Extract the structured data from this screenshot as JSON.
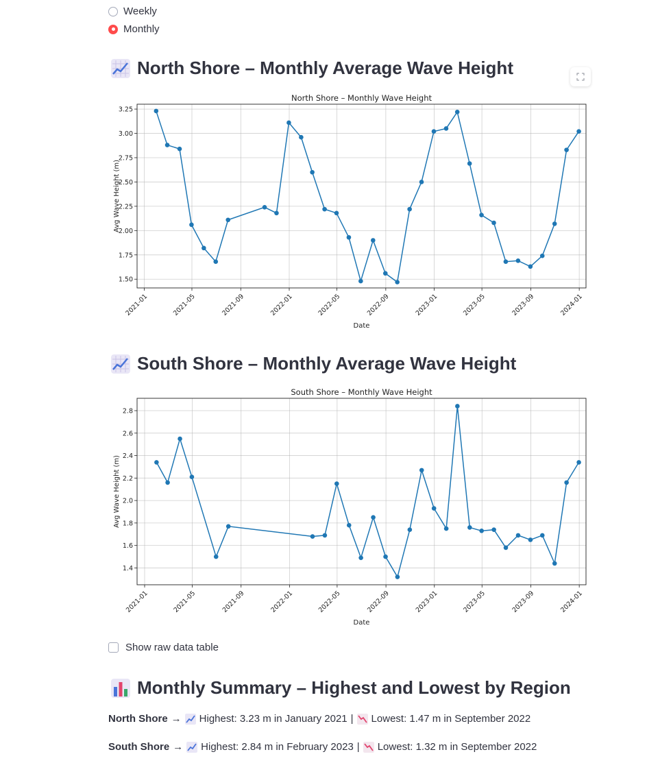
{
  "frequency": {
    "options": [
      {
        "label": "Weekly",
        "selected": false
      },
      {
        "label": "Monthly",
        "selected": true
      }
    ]
  },
  "north": {
    "heading": "North Shore – Monthly Average Wave Height",
    "heading_icon": "chart-increasing-icon"
  },
  "south": {
    "heading": "South Shore – Monthly Average Wave Height",
    "heading_icon": "chart-increasing-icon"
  },
  "show_raw": {
    "label": "Show raw data table",
    "checked": false
  },
  "summary": {
    "heading": "Monthly Summary – Highest and Lowest by Region",
    "heading_icon": "bar-chart-icon",
    "rows": [
      {
        "region": "North Shore",
        "arrow": "→",
        "highest": "Highest: 3.23 m in January 2021",
        "sep": "|",
        "lowest": "Lowest: 1.47 m in September 2022"
      },
      {
        "region": "South Shore",
        "arrow": "→",
        "highest": "Highest: 2.84 m in February 2023",
        "sep": "|",
        "lowest": "Lowest: 1.32 m in September 2022"
      }
    ]
  },
  "colors": {
    "line": "#1f77b4",
    "accent": "#ff4b4b",
    "grid": "#b0b0b0"
  },
  "chart_data": [
    {
      "type": "line",
      "title": "North Shore – Monthly Wave Height",
      "xlabel": "Date",
      "ylabel": "Avg Wave Height (m)",
      "xlim": [
        "2020-12-14",
        "2024-01-18"
      ],
      "ylim": [
        1.41,
        3.3
      ],
      "xticks": [
        "2021-01",
        "2021-05",
        "2021-09",
        "2022-01",
        "2022-05",
        "2022-09",
        "2023-01",
        "2023-05",
        "2023-09",
        "2024-01"
      ],
      "yticks": [
        "1.50",
        "1.75",
        "2.00",
        "2.25",
        "2.50",
        "2.75",
        "3.00",
        "3.25"
      ],
      "grid": true,
      "x": [
        "2021-01-31",
        "2021-02-28",
        "2021-03-31",
        "2021-04-30",
        "2021-05-31",
        "2021-06-30",
        "2021-07-31",
        "2021-10-31",
        "2021-11-30",
        "2021-12-31",
        "2022-01-31",
        "2022-02-28",
        "2022-03-31",
        "2022-04-30",
        "2022-05-31",
        "2022-06-30",
        "2022-07-31",
        "2022-08-31",
        "2022-09-30",
        "2022-10-31",
        "2022-11-30",
        "2022-12-31",
        "2023-01-31",
        "2023-02-28",
        "2023-03-31",
        "2023-04-30",
        "2023-05-31",
        "2023-06-30",
        "2023-07-31",
        "2023-08-31",
        "2023-09-30",
        "2023-10-31",
        "2023-11-30",
        "2023-12-31"
      ],
      "values": [
        3.23,
        2.88,
        2.84,
        2.06,
        1.82,
        1.68,
        2.11,
        2.24,
        2.18,
        3.11,
        2.96,
        2.6,
        2.22,
        2.18,
        1.93,
        1.48,
        1.9,
        1.56,
        1.47,
        2.22,
        2.5,
        3.02,
        3.05,
        3.22,
        2.69,
        2.16,
        2.08,
        1.68,
        1.69,
        1.63,
        1.74,
        2.07,
        2.83,
        3.02
      ]
    },
    {
      "type": "line",
      "title": "South Shore – Monthly Wave Height",
      "xlabel": "Date",
      "ylabel": "Avg Wave Height (m)",
      "xlim": [
        "2020-12-13",
        "2024-01-18"
      ],
      "ylim": [
        1.25,
        2.91
      ],
      "xticks": [
        "2021-01",
        "2021-05",
        "2021-09",
        "2022-01",
        "2022-05",
        "2022-09",
        "2023-01",
        "2023-05",
        "2023-09",
        "2024-01"
      ],
      "yticks": [
        "1.4",
        "1.6",
        "1.8",
        "2.0",
        "2.2",
        "2.4",
        "2.6",
        "2.8"
      ],
      "grid": true,
      "x": [
        "2021-01-31",
        "2021-02-28",
        "2021-03-31",
        "2021-04-30",
        "2021-06-30",
        "2021-07-31",
        "2022-02-28",
        "2022-03-31",
        "2022-04-30",
        "2022-05-31",
        "2022-06-30",
        "2022-07-31",
        "2022-08-31",
        "2022-09-30",
        "2022-10-31",
        "2022-11-30",
        "2022-12-31",
        "2023-01-31",
        "2023-02-28",
        "2023-03-31",
        "2023-04-30",
        "2023-05-31",
        "2023-06-30",
        "2023-07-31",
        "2023-08-31",
        "2023-09-30",
        "2023-10-31",
        "2023-11-30",
        "2023-12-31"
      ],
      "values": [
        2.34,
        2.16,
        2.55,
        2.21,
        1.5,
        1.77,
        1.68,
        1.69,
        2.15,
        1.78,
        1.49,
        1.85,
        1.5,
        1.32,
        1.74,
        2.27,
        1.93,
        1.75,
        2.84,
        1.76,
        1.73,
        1.74,
        1.58,
        1.69,
        1.65,
        1.69,
        1.44,
        2.16,
        2.34
      ]
    }
  ]
}
